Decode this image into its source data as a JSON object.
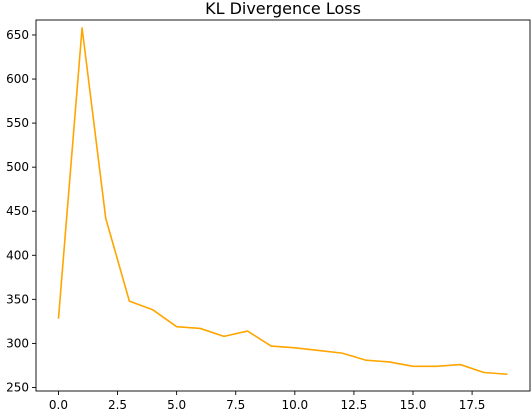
{
  "chart_data": {
    "type": "line",
    "title": "KL Divergence Loss",
    "xlabel": "",
    "ylabel": "",
    "xlim": [
      -0.95,
      19.95
    ],
    "ylim": [
      246,
      667
    ],
    "x_ticks": [
      0,
      2.5,
      5,
      7.5,
      10,
      12.5,
      15,
      17.5
    ],
    "x_tick_labels": [
      "0.0",
      "2.5",
      "5.0",
      "7.5",
      "10.0",
      "12.5",
      "15.0",
      "17.5"
    ],
    "y_ticks": [
      250,
      300,
      350,
      400,
      450,
      500,
      550,
      600,
      650
    ],
    "y_tick_labels": [
      "250",
      "300",
      "350",
      "400",
      "450",
      "500",
      "550",
      "600",
      "650"
    ],
    "grid": false,
    "series": [
      {
        "color": "#ffa500",
        "x": [
          0,
          1,
          2,
          3,
          4,
          5,
          6,
          7,
          8,
          9,
          10,
          11,
          12,
          13,
          14,
          15,
          16,
          17,
          18,
          19
        ],
        "values": [
          328,
          658,
          442,
          348,
          338,
          319,
          317,
          308,
          314,
          297,
          295,
          292,
          289,
          281,
          279,
          274,
          274,
          276,
          267,
          265
        ]
      }
    ]
  }
}
